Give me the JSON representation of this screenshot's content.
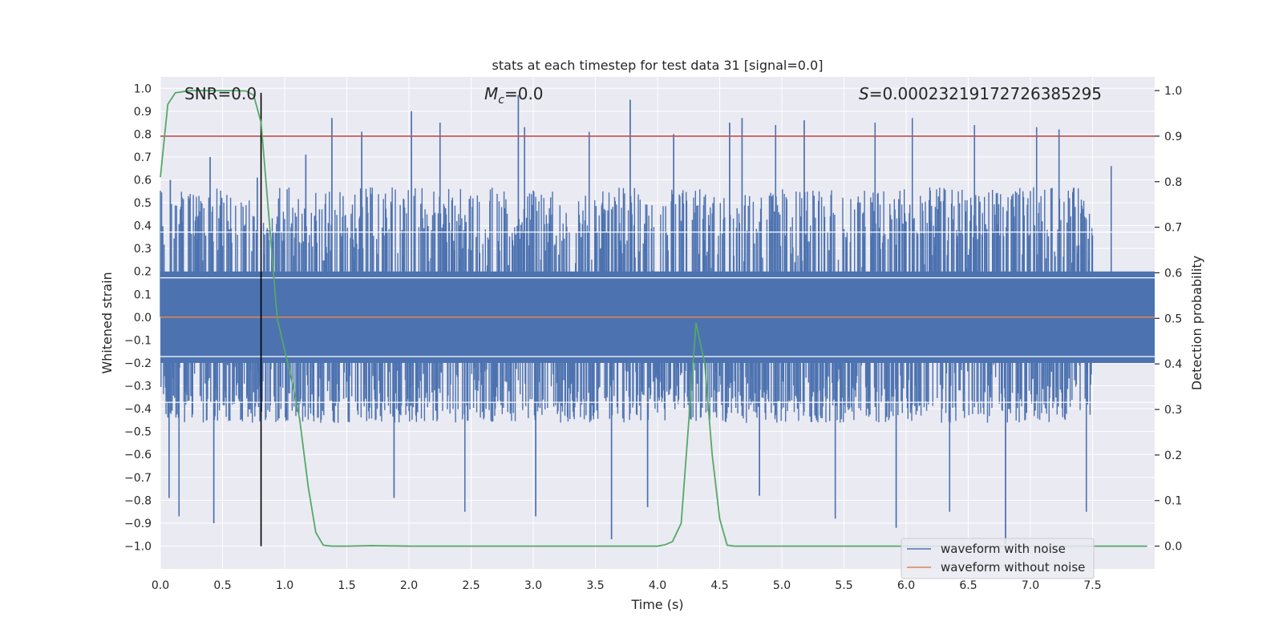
{
  "chart_data": {
    "type": "line",
    "title": "stats at each timestep for test data 31 [signal=0.0]",
    "xlabel": "Time (s)",
    "ylabel_left": "Whitened strain",
    "ylabel_right": "Detection probability",
    "xlim": [
      0.0,
      8.0
    ],
    "ylim_left": [
      -1.1,
      1.05
    ],
    "ylim_right": [
      -0.05,
      1.03
    ],
    "x_ticks": [
      0.0,
      0.5,
      1.0,
      1.5,
      2.0,
      2.5,
      3.0,
      3.5,
      4.0,
      4.5,
      5.0,
      5.5,
      6.0,
      6.5,
      7.0,
      7.5
    ],
    "x_tick_labels": [
      "0.0",
      "0.5",
      "1.0",
      "1.5",
      "2.0",
      "2.5",
      "3.0",
      "3.5",
      "4.0",
      "4.5",
      "5.0",
      "5.5",
      "6.0",
      "6.5",
      "7.0",
      "7.5"
    ],
    "y_left_ticks": [
      1.0,
      0.9,
      0.8,
      0.7,
      0.6,
      0.5,
      0.4,
      0.3,
      0.2,
      0.1,
      0.0,
      -0.1,
      -0.2,
      -0.3,
      -0.4,
      -0.5,
      -0.6,
      -0.7,
      -0.8,
      -0.9,
      -1.0
    ],
    "y_left_tick_labels": [
      "1.0",
      "0.9",
      "0.8",
      "0.7",
      "0.6",
      "0.5",
      "0.4",
      "0.3",
      "0.2",
      "0.1",
      "0.0",
      "−0.1",
      "−0.2",
      "−0.3",
      "−0.4",
      "−0.5",
      "−0.6",
      "−0.7",
      "−0.8",
      "−0.9",
      "−1.0"
    ],
    "y_right_ticks": [
      1.0,
      0.9,
      0.8,
      0.7,
      0.6,
      0.5,
      0.4,
      0.3,
      0.2,
      0.1,
      0.0
    ],
    "y_right_tick_labels": [
      "1.0",
      "0.9",
      "0.8",
      "0.7",
      "0.6",
      "0.5",
      "0.4",
      "0.3",
      "0.2",
      "0.1",
      "0.0"
    ],
    "annotations": {
      "snr": "SNR=0.0",
      "mc_symbol": "M",
      "mc_sub": "c",
      "mc_value": "=0.0",
      "s_symbol": "S",
      "s_value": "=0.00023219172726385295"
    },
    "threshold_right": 0.9,
    "marker_time": 0.81,
    "series": [
      {
        "name": "waveform with noise",
        "color": "#4c72b0",
        "axis": "left",
        "kind": "noise",
        "dense_amplitude": 0.2,
        "typical_amplitude": [
          -0.45,
          0.55
        ],
        "peak_spikes": [
          {
            "t": 0.07,
            "v": -0.79
          },
          {
            "t": 0.08,
            "v": 0.6
          },
          {
            "t": 0.15,
            "v": -0.87
          },
          {
            "t": 0.4,
            "v": 0.7
          },
          {
            "t": 0.43,
            "v": -0.9
          },
          {
            "t": 0.78,
            "v": 0.61
          },
          {
            "t": 1.17,
            "v": 0.71
          },
          {
            "t": 1.38,
            "v": 0.87
          },
          {
            "t": 1.62,
            "v": 0.81
          },
          {
            "t": 1.88,
            "v": -0.79
          },
          {
            "t": 2.02,
            "v": 0.9
          },
          {
            "t": 2.25,
            "v": 0.85
          },
          {
            "t": 2.45,
            "v": -0.85
          },
          {
            "t": 2.88,
            "v": 0.97
          },
          {
            "t": 2.93,
            "v": 0.83
          },
          {
            "t": 3.02,
            "v": -0.87
          },
          {
            "t": 3.45,
            "v": 0.81
          },
          {
            "t": 3.63,
            "v": -0.97
          },
          {
            "t": 3.78,
            "v": 0.95
          },
          {
            "t": 3.92,
            "v": -0.83
          },
          {
            "t": 4.13,
            "v": 0.8
          },
          {
            "t": 4.58,
            "v": 0.85
          },
          {
            "t": 4.68,
            "v": 0.87
          },
          {
            "t": 4.82,
            "v": -0.78
          },
          {
            "t": 4.95,
            "v": 0.84
          },
          {
            "t": 5.18,
            "v": 0.86
          },
          {
            "t": 5.43,
            "v": -0.88
          },
          {
            "t": 5.75,
            "v": 0.85
          },
          {
            "t": 5.92,
            "v": -0.92
          },
          {
            "t": 6.05,
            "v": 0.87
          },
          {
            "t": 6.35,
            "v": -0.85
          },
          {
            "t": 6.55,
            "v": 0.84
          },
          {
            "t": 6.8,
            "v": -0.99
          },
          {
            "t": 7.05,
            "v": 0.83
          },
          {
            "t": 7.23,
            "v": 0.82
          },
          {
            "t": 7.45,
            "v": -0.85
          },
          {
            "t": 7.65,
            "v": 0.66
          }
        ]
      },
      {
        "name": "waveform without noise",
        "color": "#dd8452",
        "axis": "left",
        "x": [
          0.0,
          8.0
        ],
        "y": [
          0.0,
          0.0
        ]
      },
      {
        "name": "Detection probability",
        "color": "#55a868",
        "axis": "right",
        "x": [
          0.0,
          0.06,
          0.12,
          0.19,
          0.25,
          0.31,
          0.38,
          0.44,
          0.5,
          0.56,
          0.62,
          0.69,
          0.75,
          0.81,
          0.88,
          0.94,
          1.0,
          1.06,
          1.12,
          1.19,
          1.25,
          1.31,
          1.38,
          1.5,
          1.7,
          2.0,
          2.5,
          3.0,
          3.5,
          4.0,
          4.06,
          4.12,
          4.19,
          4.25,
          4.31,
          4.38,
          4.44,
          4.5,
          4.56,
          4.62,
          5.0,
          6.0,
          7.0,
          7.94
        ],
        "y": [
          0.81,
          0.97,
          0.995,
          0.998,
          1.0,
          1.0,
          1.0,
          1.0,
          1.0,
          1.0,
          1.0,
          0.999,
          0.99,
          0.93,
          0.7,
          0.5,
          0.43,
          0.36,
          0.28,
          0.13,
          0.03,
          0.002,
          0.0,
          0.0,
          0.001,
          0.0,
          0.0,
          0.0,
          0.0,
          0.0,
          0.003,
          0.01,
          0.05,
          0.27,
          0.49,
          0.4,
          0.2,
          0.06,
          0.002,
          0.0,
          0.0,
          0.0,
          0.0,
          0.0
        ]
      }
    ],
    "legend": {
      "placement": "lower-right",
      "entries": [
        "waveform with noise",
        "waveform without noise"
      ]
    }
  }
}
